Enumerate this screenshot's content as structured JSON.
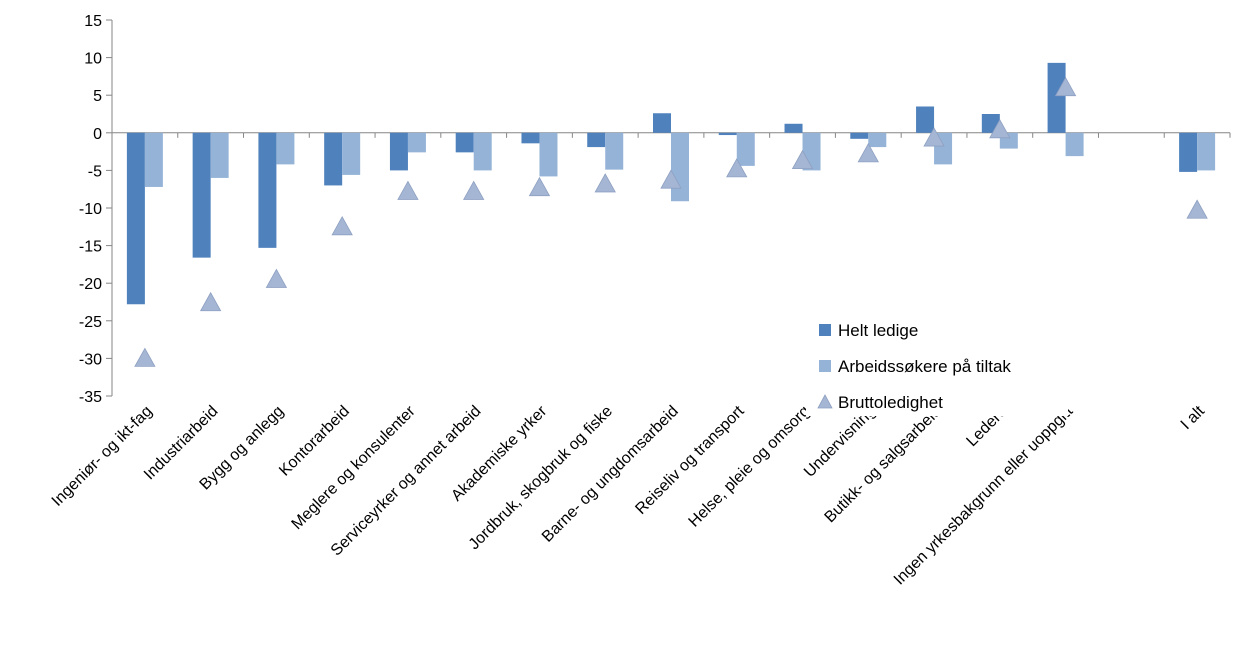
{
  "chart_data": {
    "type": "bar",
    "title": "",
    "xlabel": "",
    "ylabel": "",
    "ylim": [
      -35,
      15
    ],
    "yticks": [
      15,
      10,
      5,
      0,
      -5,
      -10,
      -15,
      -20,
      -25,
      -30,
      -35
    ],
    "legend_position": "right",
    "categories": [
      "Ingeniør- og ikt-fag",
      "Industriarbeid",
      "Bygg og anlegg",
      "Kontorarbeid",
      "Meglere og konsulenter",
      "Serviceyrker og annet arbeid",
      "Akademiske yrker",
      "Jordbruk, skogbruk og fiske",
      "Barne- og ungdomsarbeid",
      "Reiseliv og transport",
      "Helse, pleie og omsorg",
      "Undervisning",
      "Butikk- og salgsarbeid",
      "Ledere",
      "Ingen yrkesbakgrunn eller uoppgitt",
      "",
      "I alt"
    ],
    "series": [
      {
        "name": "Helt ledige",
        "kind": "bar",
        "color": "#4F81BD",
        "values": [
          -22.8,
          -16.6,
          -15.3,
          -7.0,
          -5.0,
          -2.6,
          -1.4,
          -1.9,
          2.6,
          -0.3,
          1.2,
          -0.8,
          3.5,
          2.5,
          9.3,
          null,
          -5.2
        ]
      },
      {
        "name": "Arbeidssøkere på tiltak",
        "kind": "bar",
        "color": "#95B3D7",
        "values": [
          -7.2,
          -6.0,
          -4.2,
          -5.6,
          -2.6,
          -5.0,
          -5.8,
          -4.9,
          -9.1,
          -4.4,
          -5.0,
          -1.9,
          -4.2,
          -2.1,
          -3.1,
          null,
          -5.0
        ]
      },
      {
        "name": "Bruttoledighet",
        "kind": "triangle",
        "color": "#A5B6D4",
        "values": [
          -30.0,
          -22.6,
          -19.5,
          -12.5,
          -7.8,
          -7.8,
          -7.3,
          -6.8,
          -6.3,
          -4.8,
          -3.7,
          -2.8,
          -0.7,
          0.4,
          6.0,
          null,
          -10.3
        ]
      }
    ]
  }
}
